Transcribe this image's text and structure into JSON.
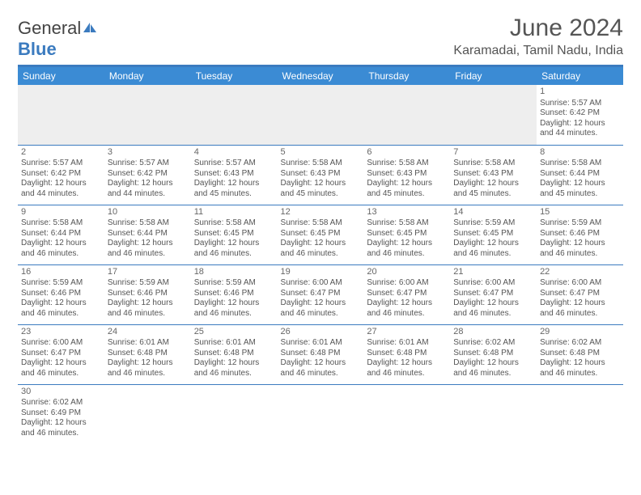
{
  "logo": {
    "text1": "General",
    "text2": "Blue"
  },
  "title": "June 2024",
  "subtitle": "Karamadai, Tamil Nadu, India",
  "colors": {
    "header_bg": "#3b8bd4",
    "accent": "#3b7bbf",
    "text": "#555555",
    "alt_row": "#eeeeee"
  },
  "dayHeaders": [
    "Sunday",
    "Monday",
    "Tuesday",
    "Wednesday",
    "Thursday",
    "Friday",
    "Saturday"
  ],
  "startWeekday": 6,
  "daysInMonth": 30,
  "days": {
    "1": {
      "sunrise": "5:57 AM",
      "sunset": "6:42 PM",
      "daylight": "12 hours and 44 minutes."
    },
    "2": {
      "sunrise": "5:57 AM",
      "sunset": "6:42 PM",
      "daylight": "12 hours and 44 minutes."
    },
    "3": {
      "sunrise": "5:57 AM",
      "sunset": "6:42 PM",
      "daylight": "12 hours and 44 minutes."
    },
    "4": {
      "sunrise": "5:57 AM",
      "sunset": "6:43 PM",
      "daylight": "12 hours and 45 minutes."
    },
    "5": {
      "sunrise": "5:58 AM",
      "sunset": "6:43 PM",
      "daylight": "12 hours and 45 minutes."
    },
    "6": {
      "sunrise": "5:58 AM",
      "sunset": "6:43 PM",
      "daylight": "12 hours and 45 minutes."
    },
    "7": {
      "sunrise": "5:58 AM",
      "sunset": "6:43 PM",
      "daylight": "12 hours and 45 minutes."
    },
    "8": {
      "sunrise": "5:58 AM",
      "sunset": "6:44 PM",
      "daylight": "12 hours and 45 minutes."
    },
    "9": {
      "sunrise": "5:58 AM",
      "sunset": "6:44 PM",
      "daylight": "12 hours and 46 minutes."
    },
    "10": {
      "sunrise": "5:58 AM",
      "sunset": "6:44 PM",
      "daylight": "12 hours and 46 minutes."
    },
    "11": {
      "sunrise": "5:58 AM",
      "sunset": "6:45 PM",
      "daylight": "12 hours and 46 minutes."
    },
    "12": {
      "sunrise": "5:58 AM",
      "sunset": "6:45 PM",
      "daylight": "12 hours and 46 minutes."
    },
    "13": {
      "sunrise": "5:58 AM",
      "sunset": "6:45 PM",
      "daylight": "12 hours and 46 minutes."
    },
    "14": {
      "sunrise": "5:59 AM",
      "sunset": "6:45 PM",
      "daylight": "12 hours and 46 minutes."
    },
    "15": {
      "sunrise": "5:59 AM",
      "sunset": "6:46 PM",
      "daylight": "12 hours and 46 minutes."
    },
    "16": {
      "sunrise": "5:59 AM",
      "sunset": "6:46 PM",
      "daylight": "12 hours and 46 minutes."
    },
    "17": {
      "sunrise": "5:59 AM",
      "sunset": "6:46 PM",
      "daylight": "12 hours and 46 minutes."
    },
    "18": {
      "sunrise": "5:59 AM",
      "sunset": "6:46 PM",
      "daylight": "12 hours and 46 minutes."
    },
    "19": {
      "sunrise": "6:00 AM",
      "sunset": "6:47 PM",
      "daylight": "12 hours and 46 minutes."
    },
    "20": {
      "sunrise": "6:00 AM",
      "sunset": "6:47 PM",
      "daylight": "12 hours and 46 minutes."
    },
    "21": {
      "sunrise": "6:00 AM",
      "sunset": "6:47 PM",
      "daylight": "12 hours and 46 minutes."
    },
    "22": {
      "sunrise": "6:00 AM",
      "sunset": "6:47 PM",
      "daylight": "12 hours and 46 minutes."
    },
    "23": {
      "sunrise": "6:00 AM",
      "sunset": "6:47 PM",
      "daylight": "12 hours and 46 minutes."
    },
    "24": {
      "sunrise": "6:01 AM",
      "sunset": "6:48 PM",
      "daylight": "12 hours and 46 minutes."
    },
    "25": {
      "sunrise": "6:01 AM",
      "sunset": "6:48 PM",
      "daylight": "12 hours and 46 minutes."
    },
    "26": {
      "sunrise": "6:01 AM",
      "sunset": "6:48 PM",
      "daylight": "12 hours and 46 minutes."
    },
    "27": {
      "sunrise": "6:01 AM",
      "sunset": "6:48 PM",
      "daylight": "12 hours and 46 minutes."
    },
    "28": {
      "sunrise": "6:02 AM",
      "sunset": "6:48 PM",
      "daylight": "12 hours and 46 minutes."
    },
    "29": {
      "sunrise": "6:02 AM",
      "sunset": "6:48 PM",
      "daylight": "12 hours and 46 minutes."
    },
    "30": {
      "sunrise": "6:02 AM",
      "sunset": "6:49 PM",
      "daylight": "12 hours and 46 minutes."
    }
  },
  "labels": {
    "sunrise": "Sunrise:",
    "sunset": "Sunset:",
    "daylight": "Daylight:"
  }
}
